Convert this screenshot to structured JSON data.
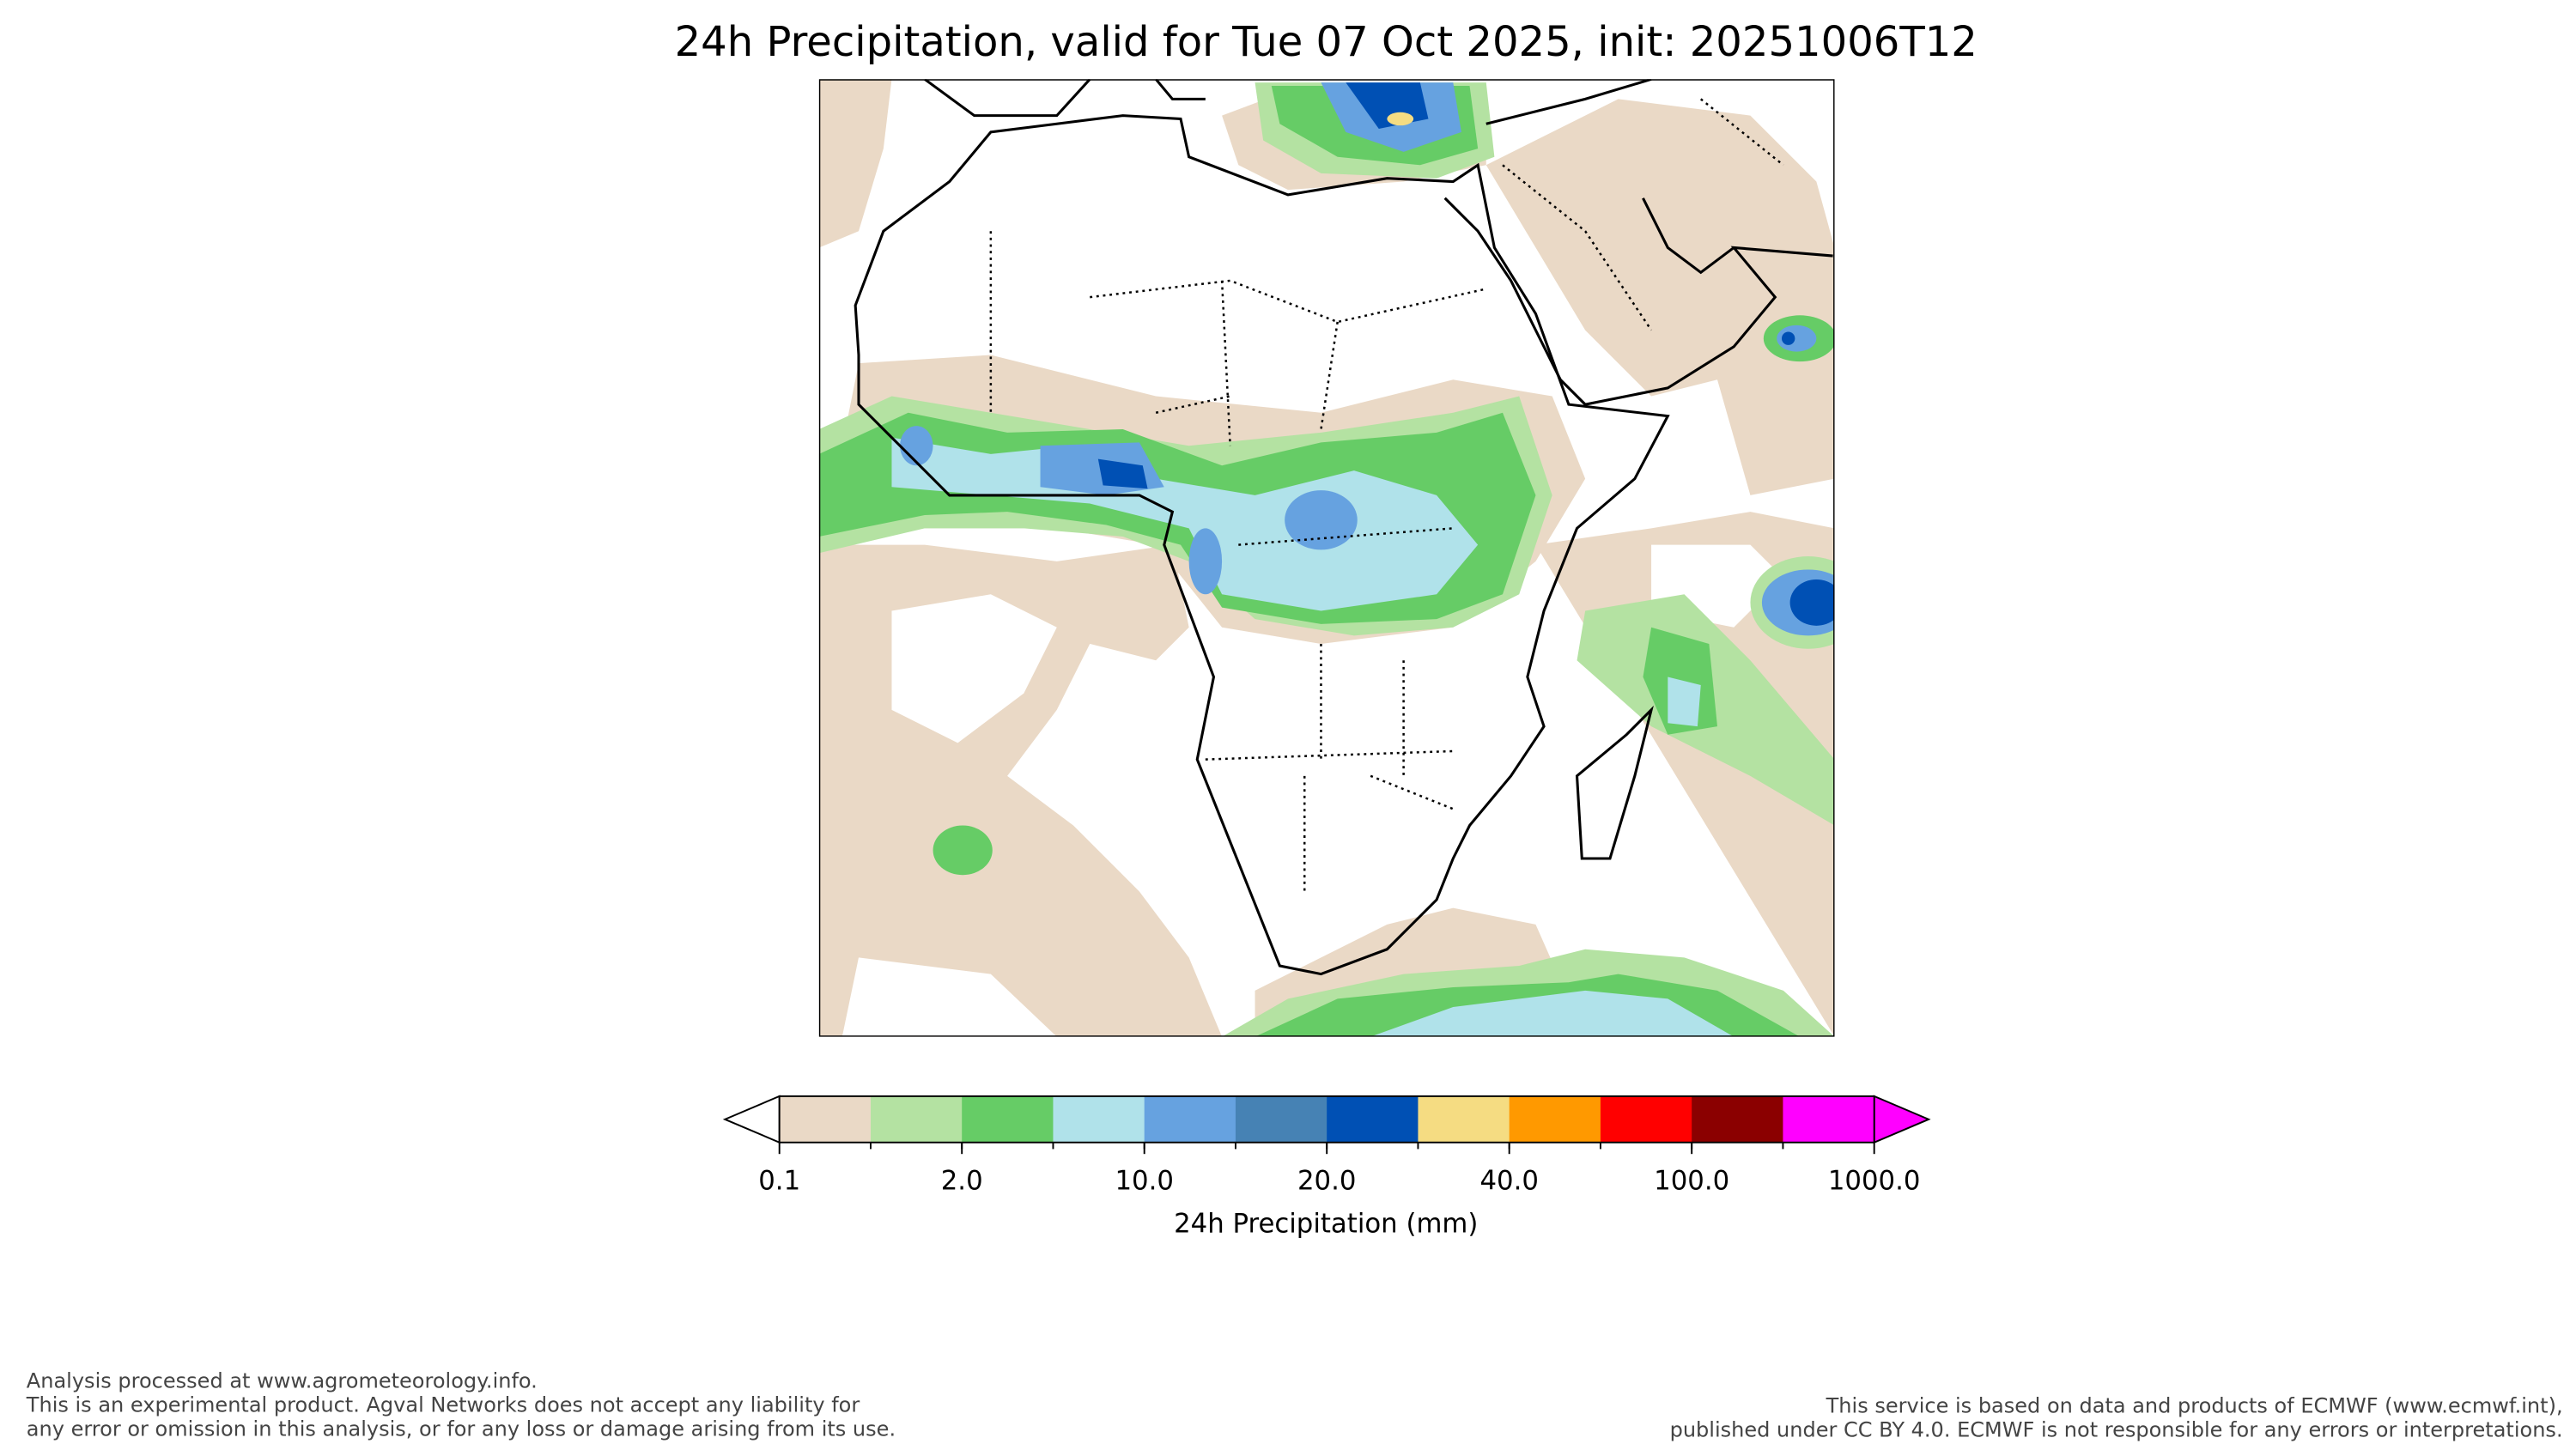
{
  "chart_data": {
    "type": "map",
    "title": "24h Precipitation, valid for Tue 07 Oct 2025, init: 20251006T12",
    "colorbar": {
      "label": "24h Precipitation (mm)",
      "colors": [
        "#ead9c6",
        "#b4e2a2",
        "#66cc66",
        "#b0e2ea",
        "#66a2e0",
        "#4682b4",
        "#0050b4",
        "#f5dc82",
        "#ff9900",
        "#ff0000",
        "#8b0000",
        "#ff00ff"
      ],
      "under_color": "#ffffff",
      "over_color": "#ff00ff",
      "ticks": [
        0.1,
        {
          "value": 2,
          "label": "2.0"
        },
        {
          "value": 10,
          "label": "10.0"
        },
        {
          "value": 20,
          "label": "20.0"
        },
        {
          "value": 40,
          "label": "40.0"
        },
        {
          "value": 100,
          "label": "100.0"
        },
        {
          "value": 1000,
          "label": "1000.0"
        }
      ]
    }
  },
  "footer": {
    "left": [
      "Analysis processed at www.agrometeorology.info.",
      "This is an experimental product. Agval Networks does not accept any liability for",
      "any error or omission in this analysis, or for any loss or damage arising from its use."
    ],
    "right": [
      "This service is based on data and products of ECMWF (www.ecmwf.int),",
      "published under CC BY 4.0. ECMWF is not responsible for any errors or interpretations."
    ]
  }
}
